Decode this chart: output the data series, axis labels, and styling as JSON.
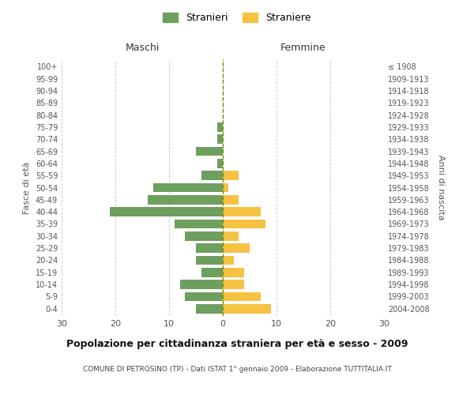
{
  "age_groups": [
    "0-4",
    "5-9",
    "10-14",
    "15-19",
    "20-24",
    "25-29",
    "30-34",
    "35-39",
    "40-44",
    "45-49",
    "50-54",
    "55-59",
    "60-64",
    "65-69",
    "70-74",
    "75-79",
    "80-84",
    "85-89",
    "90-94",
    "95-99",
    "100+"
  ],
  "birth_years": [
    "2004-2008",
    "1999-2003",
    "1994-1998",
    "1989-1993",
    "1984-1988",
    "1979-1983",
    "1974-1978",
    "1969-1973",
    "1964-1968",
    "1959-1963",
    "1954-1958",
    "1949-1953",
    "1944-1948",
    "1939-1943",
    "1934-1938",
    "1929-1933",
    "1924-1928",
    "1919-1923",
    "1914-1918",
    "1909-1913",
    "≤ 1908"
  ],
  "males": [
    5,
    7,
    8,
    4,
    5,
    5,
    7,
    9,
    21,
    14,
    13,
    4,
    1,
    5,
    1,
    1,
    0,
    0,
    0,
    0,
    0
  ],
  "females": [
    9,
    7,
    4,
    4,
    2,
    5,
    3,
    8,
    7,
    3,
    1,
    3,
    0,
    0,
    0,
    0,
    0,
    0,
    0,
    0,
    0
  ],
  "male_color": "#6d9f5e",
  "female_color": "#f5c242",
  "male_label": "Stranieri",
  "female_label": "Straniere",
  "title": "Popolazione per cittadinanza straniera per età e sesso - 2009",
  "subtitle": "COMUNE DI PETROSINO (TP) - Dati ISTAT 1° gennaio 2009 - Elaborazione TUTTITALIA.IT",
  "xlabel_left": "Maschi",
  "xlabel_right": "Femmine",
  "ylabel_left": "Fasce di età",
  "ylabel_right": "Anni di nascita",
  "xlim": 30,
  "background_color": "#ffffff",
  "grid_color": "#cccccc"
}
